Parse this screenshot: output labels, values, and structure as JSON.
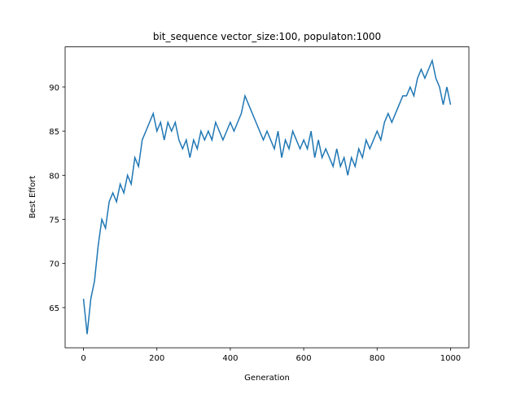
{
  "chart_data": {
    "type": "line",
    "title": "bit_sequence vector_size:100, populaton:1000",
    "x_label": "Generation",
    "y_label": "Best Effort",
    "color": "#1f77b4",
    "x": [
      0,
      10,
      20,
      30,
      40,
      50,
      60,
      70,
      80,
      90,
      100,
      110,
      120,
      130,
      140,
      150,
      160,
      170,
      180,
      190,
      200,
      210,
      220,
      230,
      240,
      250,
      260,
      270,
      280,
      290,
      300,
      310,
      320,
      330,
      340,
      350,
      360,
      370,
      380,
      390,
      400,
      410,
      420,
      430,
      440,
      450,
      460,
      470,
      480,
      490,
      500,
      510,
      520,
      530,
      540,
      550,
      560,
      570,
      580,
      590,
      600,
      610,
      620,
      630,
      640,
      650,
      660,
      670,
      680,
      690,
      700,
      710,
      720,
      730,
      740,
      750,
      760,
      770,
      780,
      790,
      800,
      810,
      820,
      830,
      840,
      850,
      860,
      870,
      880,
      890,
      900,
      910,
      920,
      930,
      940,
      950,
      960,
      970,
      980,
      990,
      1000
    ],
    "values": [
      66,
      62,
      66,
      68,
      72,
      75,
      74,
      77,
      78,
      77,
      79,
      78,
      80,
      79,
      82,
      81,
      84,
      85,
      86,
      87,
      85,
      86,
      84,
      86,
      85,
      86,
      84,
      83,
      84,
      82,
      84,
      83,
      85,
      84,
      85,
      84,
      86,
      85,
      84,
      85,
      86,
      85,
      86,
      87,
      89,
      88,
      87,
      86,
      85,
      84,
      85,
      84,
      83,
      85,
      82,
      84,
      83,
      85,
      84,
      83,
      84,
      83,
      85,
      82,
      84,
      82,
      83,
      82,
      81,
      83,
      81,
      82,
      80,
      82,
      81,
      83,
      82,
      84,
      83,
      84,
      85,
      84,
      86,
      87,
      86,
      87,
      88,
      89,
      89,
      90,
      89,
      91,
      92,
      91,
      92,
      93,
      91,
      90,
      88,
      90,
      88
    ],
    "xlim": [
      -50,
      1050
    ],
    "ylim": [
      60.45,
      94.55
    ],
    "xticks": [
      0,
      200,
      400,
      600,
      800,
      1000
    ],
    "yticks": [
      65,
      70,
      75,
      80,
      85,
      90
    ]
  }
}
